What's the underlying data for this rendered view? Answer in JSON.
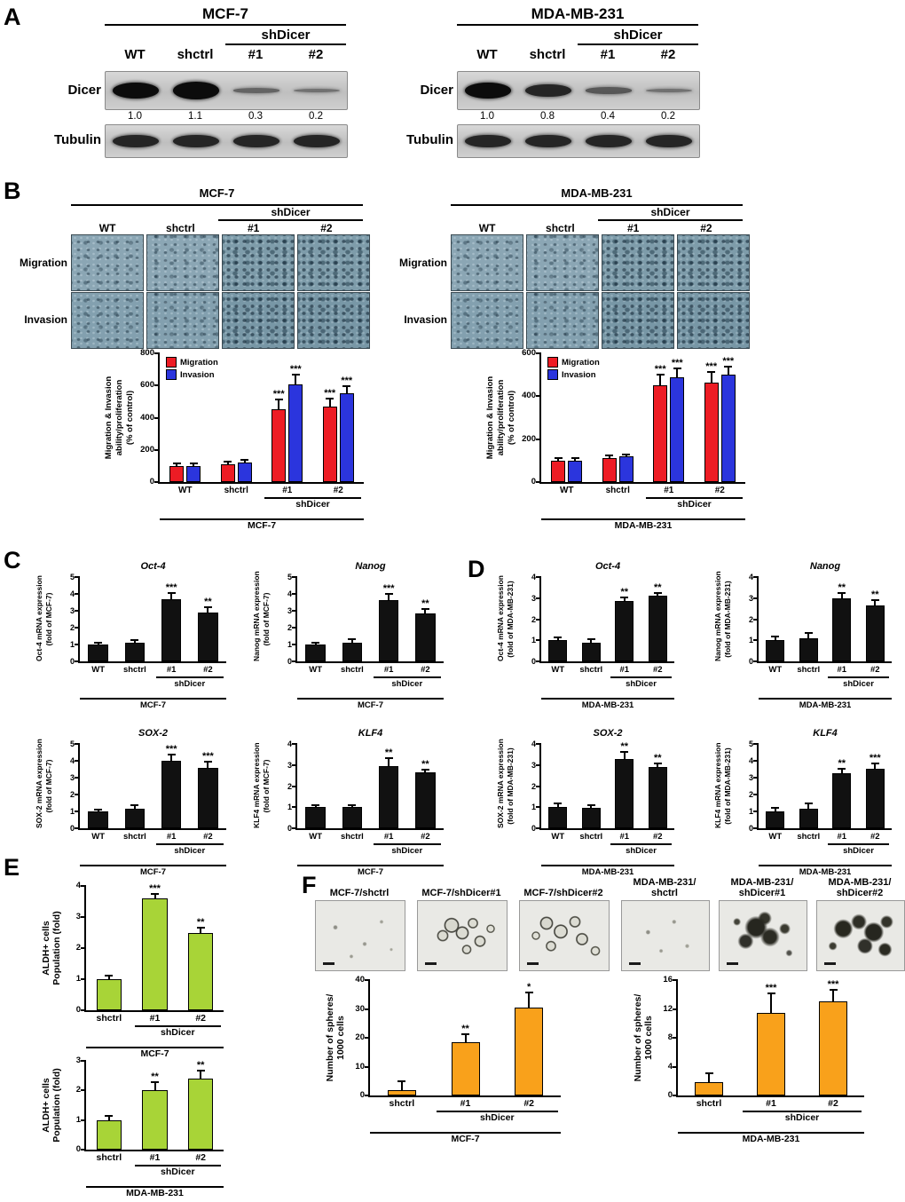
{
  "panels": {
    "A": {
      "label": "A",
      "groups": [
        {
          "cell_line": "MCF-7",
          "shdicer": "shDicer",
          "lanes": [
            "WT",
            "shctrl",
            "#1",
            "#2"
          ],
          "dicer_label": "Dicer",
          "tubulin_label": "Tubulin",
          "dicer_quant": [
            "1.0",
            "1.1",
            "0.3",
            "0.2"
          ],
          "dicer_bands": [
            1,
            1.1,
            0.3,
            0.2
          ],
          "tubulin_bands": [
            0.8,
            0.8,
            0.8,
            0.8
          ]
        },
        {
          "cell_line": "MDA-MB-231",
          "shdicer": "shDicer",
          "lanes": [
            "WT",
            "shctrl",
            "#1",
            "#2"
          ],
          "dicer_label": "Dicer",
          "tubulin_label": "Tubulin",
          "dicer_quant": [
            "1.0",
            "0.8",
            "0.4",
            "0.2"
          ],
          "dicer_bands": [
            1,
            0.8,
            0.4,
            0.2
          ],
          "tubulin_bands": [
            0.8,
            0.8,
            0.8,
            0.8
          ]
        }
      ]
    },
    "B": {
      "label": "B",
      "groups": [
        {
          "cell_line": "MCF-7",
          "shdicer": "shDicer",
          "lanes": [
            "WT",
            "shctrl",
            "#1",
            "#2"
          ],
          "row_labels": [
            "Migration",
            "Invasion"
          ]
        },
        {
          "cell_line": "MDA-MB-231",
          "shdicer": "shDicer",
          "lanes": [
            "WT",
            "shctrl",
            "#1",
            "#2"
          ],
          "row_labels": [
            "Migration",
            "Invasion"
          ]
        }
      ]
    },
    "C": {
      "label": "C"
    },
    "D": {
      "label": "D"
    },
    "E": {
      "label": "E"
    },
    "F": {
      "label": "F",
      "image_labels_left": [
        "MCF-7/shctrl",
        "MCF-7/shDicer#1",
        "MCF-7/shDicer#2"
      ],
      "image_labels_right": [
        "MDA-MB-231/\nshctrl",
        "MDA-MB-231/\nshDicer#1",
        "MDA-MB-231/\nshDicer#2"
      ]
    }
  },
  "chart_data": [
    {
      "name": "migration-invasion-mcf7",
      "type": "bar",
      "ylabel": [
        "Migration & Invasion",
        "ability/proliferation",
        "(% of control)"
      ],
      "ylim": [
        0,
        800
      ],
      "yticks": [
        0,
        200,
        400,
        600,
        800
      ],
      "categories": [
        "WT",
        "shctrl",
        "#1",
        "#2"
      ],
      "series": [
        {
          "name": "Migration",
          "color": "#ed1c24",
          "values": [
            100,
            112,
            450,
            468
          ],
          "errors": [
            10,
            12,
            55,
            45
          ],
          "sig": [
            "",
            "",
            "***",
            "***"
          ]
        },
        {
          "name": "Invasion",
          "color": "#2b35dd",
          "values": [
            100,
            120,
            608,
            550
          ],
          "errors": [
            10,
            10,
            55,
            38
          ],
          "sig": [
            "",
            "",
            "***",
            "***"
          ]
        }
      ],
      "legend": true,
      "brackets": [
        {
          "label": "shDicer",
          "from": 2,
          "to": 3
        },
        {
          "label": "MCF-7",
          "from": 0,
          "to": 3,
          "full": true
        }
      ]
    },
    {
      "name": "migration-invasion-mda-mb-231",
      "type": "bar",
      "ylabel": [
        "Migration & Invasion",
        "ability/proliferation",
        "(% of control)"
      ],
      "ylim": [
        0,
        600
      ],
      "yticks": [
        0,
        200,
        400,
        600
      ],
      "categories": [
        "WT",
        "shctrl",
        "#1",
        "#2"
      ],
      "series": [
        {
          "name": "Migration",
          "color": "#ed1c24",
          "values": [
            100,
            113,
            450,
            462
          ],
          "errors": [
            8,
            8,
            48,
            45
          ],
          "sig": [
            "",
            "",
            "***",
            "***"
          ]
        },
        {
          "name": "Invasion",
          "color": "#2b35dd",
          "values": [
            100,
            118,
            488,
            500
          ],
          "errors": [
            8,
            8,
            38,
            33
          ],
          "sig": [
            "",
            "",
            "***",
            "***"
          ]
        }
      ],
      "legend": true,
      "brackets": [
        {
          "label": "shDicer",
          "from": 2,
          "to": 3
        },
        {
          "label": "MDA-MB-231",
          "from": 0,
          "to": 3,
          "full": true
        }
      ]
    },
    {
      "name": "oct4-mrna-mcf7",
      "type": "bar",
      "title": "Oct-4",
      "ylabel": [
        "Oct-4 mRNA expression",
        "(fold of MCF-7)"
      ],
      "ylim": [
        0,
        5
      ],
      "yticks": [
        0,
        1,
        2,
        3,
        4,
        5
      ],
      "categories": [
        "WT",
        "shctrl",
        "#1",
        "#2"
      ],
      "series": [
        {
          "color": "#111111",
          "values": [
            1.0,
            1.1,
            3.7,
            2.9
          ],
          "errors": [
            0.07,
            0.12,
            0.3,
            0.25
          ],
          "sig": [
            "",
            "",
            "***",
            "**"
          ]
        }
      ],
      "brackets": [
        {
          "label": "shDicer",
          "from": 2,
          "to": 3
        },
        {
          "label": "MCF-7",
          "from": 0,
          "to": 3,
          "full": true
        }
      ]
    },
    {
      "name": "nanog-mrna-mcf7",
      "type": "bar",
      "title": "Nanog",
      "ylabel": [
        "Nanog mRNA expression",
        "(fold of MCF-7)"
      ],
      "ylim": [
        0,
        5
      ],
      "yticks": [
        0,
        1,
        2,
        3,
        4,
        5
      ],
      "categories": [
        "WT",
        "shctrl",
        "#1",
        "#2"
      ],
      "series": [
        {
          "color": "#111111",
          "values": [
            1.0,
            1.1,
            3.65,
            2.85
          ],
          "errors": [
            0.07,
            0.15,
            0.3,
            0.2
          ],
          "sig": [
            "",
            "",
            "***",
            "**"
          ]
        }
      ],
      "brackets": [
        {
          "label": "shDicer",
          "from": 2,
          "to": 3
        },
        {
          "label": "MCF-7",
          "from": 0,
          "to": 3,
          "full": true
        }
      ]
    },
    {
      "name": "sox2-mrna-mcf7",
      "type": "bar",
      "title": "SOX-2",
      "ylabel": [
        "SOX-2 mRNA expression",
        "(fold of MCF-7)"
      ],
      "ylim": [
        0,
        5
      ],
      "yticks": [
        0,
        1,
        2,
        3,
        4,
        5
      ],
      "categories": [
        "WT",
        "shctrl",
        "#1",
        "#2"
      ],
      "series": [
        {
          "color": "#111111",
          "values": [
            1.0,
            1.15,
            4.0,
            3.6
          ],
          "errors": [
            0.05,
            0.15,
            0.3,
            0.3
          ],
          "sig": [
            "",
            "",
            "***",
            "***"
          ]
        }
      ],
      "brackets": [
        {
          "label": "shDicer",
          "from": 2,
          "to": 3
        },
        {
          "label": "MCF-7",
          "from": 0,
          "to": 3,
          "full": true
        }
      ]
    },
    {
      "name": "klf4-mrna-mcf7",
      "type": "bar",
      "title": "KLF4",
      "ylabel": [
        "KLF4 mRNA expression",
        "(fold of MCF-7)"
      ],
      "ylim": [
        0,
        4
      ],
      "yticks": [
        0,
        1,
        2,
        3,
        4
      ],
      "categories": [
        "WT",
        "shctrl",
        "#1",
        "#2"
      ],
      "series": [
        {
          "color": "#111111",
          "values": [
            1.0,
            1.0,
            2.95,
            2.65
          ],
          "errors": [
            0.07,
            0.07,
            0.35,
            0.1
          ],
          "sig": [
            "",
            "",
            "**",
            "**"
          ]
        }
      ],
      "brackets": [
        {
          "label": "shDicer",
          "from": 2,
          "to": 3
        },
        {
          "label": "MCF-7",
          "from": 0,
          "to": 3,
          "full": true
        }
      ]
    },
    {
      "name": "oct4-mrna-mda-mb-231",
      "type": "bar",
      "title": "Oct-4",
      "ylabel": [
        "Oct-4 mRNA expression",
        "(fold of MDA-MB-231)"
      ],
      "ylim": [
        0,
        4
      ],
      "yticks": [
        0,
        1,
        2,
        3,
        4
      ],
      "categories": [
        "WT",
        "shctrl",
        "#1",
        "#2"
      ],
      "series": [
        {
          "color": "#111111",
          "values": [
            1.0,
            0.9,
            2.85,
            3.1
          ],
          "errors": [
            0.1,
            0.1,
            0.12,
            0.1
          ],
          "sig": [
            "",
            "",
            "**",
            "**"
          ]
        }
      ],
      "brackets": [
        {
          "label": "shDicer",
          "from": 2,
          "to": 3
        },
        {
          "label": "MDA-MB-231",
          "from": 0,
          "to": 3,
          "full": true
        }
      ]
    },
    {
      "name": "nanog-mrna-mda-mb-231",
      "type": "bar",
      "title": "Nanog",
      "ylabel": [
        "Nanog mRNA expression",
        "(fold of MDA-MB-231)"
      ],
      "ylim": [
        0,
        4
      ],
      "yticks": [
        0,
        1,
        2,
        3,
        4
      ],
      "categories": [
        "WT",
        "shctrl",
        "#1",
        "#2"
      ],
      "series": [
        {
          "color": "#111111",
          "values": [
            1.0,
            1.1,
            3.0,
            2.65
          ],
          "errors": [
            0.12,
            0.2,
            0.22,
            0.2
          ],
          "sig": [
            "",
            "",
            "**",
            "**"
          ]
        }
      ],
      "brackets": [
        {
          "label": "shDicer",
          "from": 2,
          "to": 3
        },
        {
          "label": "MDA-MB-231",
          "from": 0,
          "to": 3,
          "full": true
        }
      ]
    },
    {
      "name": "sox2-mrna-mda-mb-231",
      "type": "bar",
      "title": "SOX-2",
      "ylabel": [
        "SOX-2 mRNA expression",
        "(fold of MDA-MB-231)"
      ],
      "ylim": [
        0,
        4
      ],
      "yticks": [
        0,
        1,
        2,
        3,
        4
      ],
      "categories": [
        "WT",
        "shctrl",
        "#1",
        "#2"
      ],
      "series": [
        {
          "color": "#111111",
          "values": [
            1.0,
            0.95,
            3.3,
            2.9
          ],
          "errors": [
            0.12,
            0.1,
            0.28,
            0.15
          ],
          "sig": [
            "",
            "",
            "**",
            "**"
          ]
        }
      ],
      "brackets": [
        {
          "label": "shDicer",
          "from": 2,
          "to": 3
        },
        {
          "label": "MDA-MB-231",
          "from": 0,
          "to": 3,
          "full": true
        }
      ]
    },
    {
      "name": "klf4-mrna-mda-mb-231",
      "type": "bar",
      "title": "KLF4",
      "ylabel": [
        "KLF4 mRNA expression",
        "(fold of MDA-MB-231)"
      ],
      "ylim": [
        0,
        5
      ],
      "yticks": [
        0,
        1,
        2,
        3,
        4,
        5
      ],
      "categories": [
        "WT",
        "shctrl",
        "#1",
        "#2"
      ],
      "series": [
        {
          "color": "#111111",
          "values": [
            1.0,
            1.15,
            3.25,
            3.55
          ],
          "errors": [
            0.15,
            0.25,
            0.2,
            0.25
          ],
          "sig": [
            "",
            "",
            "**",
            "***"
          ]
        }
      ],
      "brackets": [
        {
          "label": "shDicer",
          "from": 2,
          "to": 3
        },
        {
          "label": "MDA-MB-231",
          "from": 0,
          "to": 3,
          "full": true
        }
      ]
    },
    {
      "name": "aldh-population-mcf7",
      "type": "bar",
      "ylabel": [
        "ALDH+ cells",
        "Population (fold)"
      ],
      "ylim": [
        0,
        4
      ],
      "yticks": [
        0,
        1,
        2,
        3,
        4
      ],
      "categories": [
        "shctrl",
        "#1",
        "#2"
      ],
      "series": [
        {
          "color": "#a8d437",
          "values": [
            1.0,
            3.6,
            2.5
          ],
          "errors": [
            0.1,
            0.12,
            0.12
          ],
          "sig": [
            "",
            "***",
            "**"
          ]
        }
      ],
      "brackets": [
        {
          "label": "shDicer",
          "from": 1,
          "to": 2
        },
        {
          "label": "MCF-7",
          "from": 0,
          "to": 2,
          "full": true
        }
      ]
    },
    {
      "name": "aldh-population-mda-mb-231",
      "type": "bar",
      "ylabel": [
        "ALDH+ cells",
        "Population (fold)"
      ],
      "ylim": [
        0,
        3
      ],
      "yticks": [
        0,
        1,
        2,
        3
      ],
      "categories": [
        "shctrl",
        "#1",
        "#2"
      ],
      "series": [
        {
          "color": "#a8d437",
          "values": [
            1.0,
            2.0,
            2.4
          ],
          "errors": [
            0.1,
            0.25,
            0.25
          ],
          "sig": [
            "",
            "**",
            "**"
          ]
        }
      ],
      "brackets": [
        {
          "label": "shDicer",
          "from": 1,
          "to": 2
        },
        {
          "label": "MDA-MB-231",
          "from": 0,
          "to": 2,
          "full": true
        }
      ]
    },
    {
      "name": "spheres-mcf7",
      "type": "bar",
      "ylabel": [
        "Number of spheres/",
        "1000 cells"
      ],
      "ylim": [
        0,
        40
      ],
      "yticks": [
        0,
        10,
        20,
        30,
        40
      ],
      "categories": [
        "shctrl",
        "#1",
        "#2"
      ],
      "series": [
        {
          "color": "#f9a11b",
          "values": [
            2,
            18.5,
            30.5
          ],
          "errors": [
            2.5,
            2.5,
            5
          ],
          "sig": [
            "",
            "**",
            "*"
          ]
        }
      ],
      "brackets": [
        {
          "label": "shDicer",
          "from": 1,
          "to": 2
        },
        {
          "label": "MCF-7",
          "from": 0,
          "to": 2,
          "full": true
        }
      ]
    },
    {
      "name": "spheres-mda-mb-231",
      "type": "bar",
      "ylabel": [
        "Number of spheres/",
        "1000 cells"
      ],
      "ylim": [
        0,
        16
      ],
      "yticks": [
        0,
        4,
        8,
        12,
        16
      ],
      "categories": [
        "shctrl",
        "#1",
        "#2"
      ],
      "series": [
        {
          "color": "#f9a11b",
          "values": [
            1.8,
            11.5,
            13
          ],
          "errors": [
            1.2,
            2.5,
            1.5
          ],
          "sig": [
            "",
            "***",
            "***"
          ]
        }
      ],
      "brackets": [
        {
          "label": "shDicer",
          "from": 1,
          "to": 2
        },
        {
          "label": "MDA-MB-231",
          "from": 0,
          "to": 2,
          "full": true
        }
      ]
    }
  ]
}
